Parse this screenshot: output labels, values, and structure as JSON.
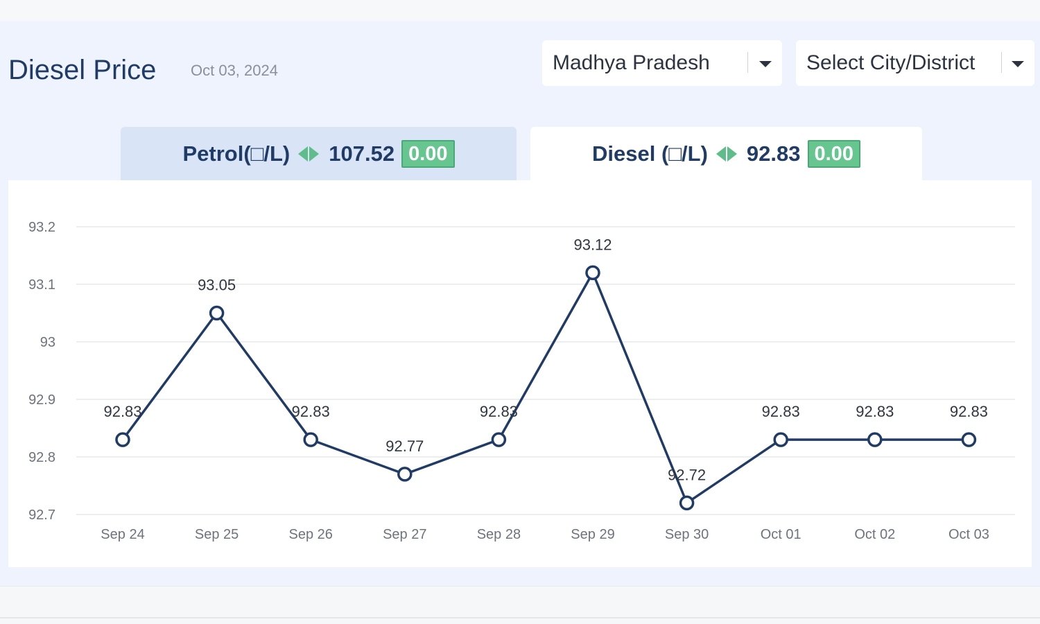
{
  "header": {
    "title": "Diesel Price",
    "date": "Oct 03, 2024"
  },
  "filters": {
    "state": "Madhya Pradesh",
    "city_placeholder": "Select City/District"
  },
  "tabs": [
    {
      "label": "Petrol(□/L)",
      "price": "107.52",
      "change": "0.00",
      "active": false
    },
    {
      "label": "Diesel (□/L)",
      "price": "92.83",
      "change": "0.00",
      "active": true
    }
  ],
  "colors": {
    "line": "#1f3b66",
    "accent_green": "#67c590",
    "active_tab": "#ffffff",
    "inactive_tab": "#d9e5f7"
  },
  "chart_data": {
    "type": "line",
    "categories": [
      "Sep 24",
      "Sep 25",
      "Sep 26",
      "Sep 27",
      "Sep 28",
      "Sep 29",
      "Sep 30",
      "Oct 01",
      "Oct 02",
      "Oct 03"
    ],
    "values": [
      92.83,
      93.05,
      92.83,
      92.77,
      92.83,
      93.12,
      92.72,
      92.83,
      92.83,
      92.83
    ],
    "data_labels": [
      "92.83",
      "93.05",
      "92.83",
      "92.77",
      "92.83",
      "93.12",
      "92.72",
      "92.83",
      "92.83",
      "92.83"
    ],
    "y_ticks": [
      "93.2",
      "93.1",
      "93",
      "92.9",
      "92.8",
      "92.7"
    ],
    "ylim": [
      92.7,
      93.2
    ],
    "grid": true,
    "legend": "none"
  }
}
